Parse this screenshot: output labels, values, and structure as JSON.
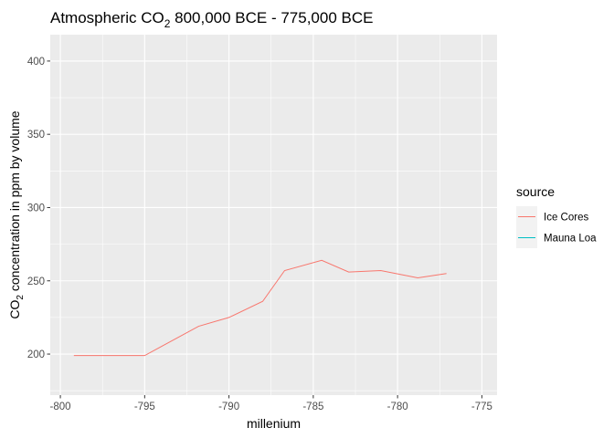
{
  "chart_data": {
    "type": "line",
    "title": {
      "prefix": "Atmospheric CO",
      "subscript": "2",
      "suffix": " 800,000 BCE - 775,000 BCE"
    },
    "xlabel": "millenium",
    "ylabel": {
      "prefix": "CO",
      "subscript": "2",
      "suffix": " concentration in ppm by volume"
    },
    "xlim": [
      -800.6,
      -774.1
    ],
    "ylim": [
      172,
      418
    ],
    "x_ticks": [
      -800,
      -795,
      -790,
      -785,
      -780,
      -775
    ],
    "x_tick_labels": [
      "-800",
      "-795",
      "-790",
      "-785",
      "-780",
      "-775"
    ],
    "y_ticks": [
      200,
      250,
      300,
      350,
      400
    ],
    "y_tick_labels": [
      "200",
      "250",
      "300",
      "350",
      "400"
    ],
    "grid": true,
    "legend": {
      "title": "source",
      "position": "right",
      "entries": [
        {
          "label": "Ice Cores",
          "color": "#F8766D"
        },
        {
          "label": "Mauna Loa",
          "color": "#00BFC4"
        }
      ]
    },
    "series": [
      {
        "name": "Ice Cores",
        "color": "#F8766D",
        "x": [
          -799.2,
          -795.0,
          -791.8,
          -790.0,
          -788.0,
          -786.7,
          -784.5,
          -782.9,
          -781.0,
          -778.8,
          -777.1
        ],
        "y": [
          199,
          199,
          219,
          225,
          236,
          257,
          264,
          256,
          257,
          252,
          255
        ]
      },
      {
        "name": "Mauna Loa",
        "color": "#00BFC4",
        "x": [],
        "y": []
      }
    ]
  }
}
